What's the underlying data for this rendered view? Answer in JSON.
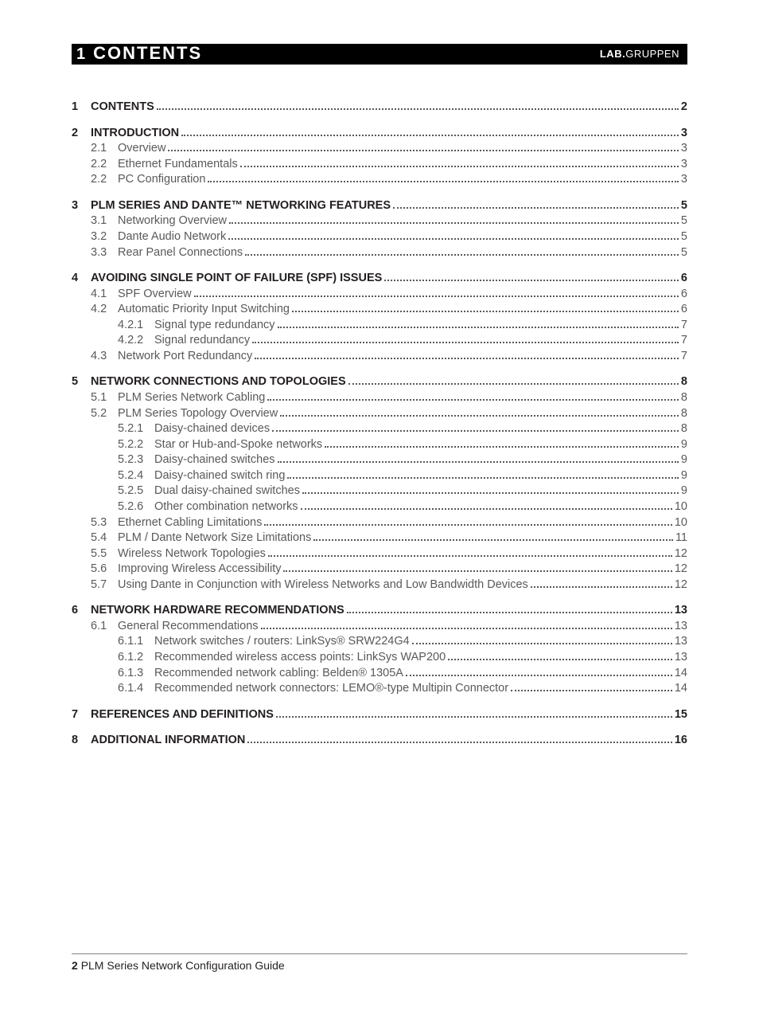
{
  "header": {
    "chapter_number": "1",
    "chapter_title": "CONTENTS",
    "brand_prefix": "LAB",
    "brand_dot": ".",
    "brand_suffix": "GRUPPEN"
  },
  "colors": {
    "header_bg": "#000000",
    "header_fg": "#ffffff",
    "text_main": "#231f20",
    "text_sub": "#58595b",
    "rule": "#808285",
    "page_bg": "#ffffff"
  },
  "typography": {
    "body_fontsize_pt": 11,
    "title_fontsize_pt": 17,
    "footer_fontsize_pt": 11
  },
  "toc": [
    {
      "num": "1",
      "title": "CONTENTS",
      "page": "2",
      "subs": []
    },
    {
      "num": "2",
      "title": "INTRODUCTION",
      "page": "3",
      "subs": [
        {
          "num": "2.1",
          "title": "Overview",
          "page": "3"
        },
        {
          "num": "2.2",
          "title": "Ethernet Fundamentals",
          "page": "3"
        },
        {
          "num": "2.2",
          "title": "PC Configuration",
          "page": "3"
        }
      ]
    },
    {
      "num": "3",
      "title": "PLM SERIES AND DANTE™ NETWORKING FEATURES",
      "page": "5",
      "subs": [
        {
          "num": "3.1",
          "title": "Networking Overview",
          "page": "5"
        },
        {
          "num": "3.2",
          "title": "Dante Audio Network",
          "page": "5"
        },
        {
          "num": "3.3",
          "title": "Rear Panel Connections",
          "page": "5"
        }
      ]
    },
    {
      "num": "4",
      "title": "AVOIDING SINGLE POINT OF FAILURE (SPF) ISSUES",
      "page": "6",
      "subs": [
        {
          "num": "4.1",
          "title": "SPF Overview",
          "page": "6"
        },
        {
          "num": "4.2",
          "title": "Automatic Priority Input Switching",
          "page": "6",
          "subs": [
            {
              "num": "4.2.1",
              "title": "Signal type redundancy",
              "page": "7"
            },
            {
              "num": "4.2.2",
              "title": "Signal redundancy",
              "page": "7"
            }
          ]
        },
        {
          "num": "4.3",
          "title": "Network Port Redundancy",
          "page": "7"
        }
      ]
    },
    {
      "num": "5",
      "title": "NETWORK CONNECTIONS AND TOPOLOGIES",
      "page": "8",
      "subs": [
        {
          "num": "5.1",
          "title": "PLM Series Network Cabling",
          "page": "8"
        },
        {
          "num": "5.2",
          "title": "PLM Series Topology Overview",
          "page": "8",
          "subs": [
            {
              "num": "5.2.1",
              "title": "Daisy-chained devices",
              "page": "8"
            },
            {
              "num": "5.2.2",
              "title": "Star or Hub-and-Spoke networks",
              "page": "9"
            },
            {
              "num": "5.2.3",
              "title": "Daisy-chained switches",
              "page": "9"
            },
            {
              "num": "5.2.4",
              "title": "Daisy-chained switch ring",
              "page": "9"
            },
            {
              "num": "5.2.5",
              "title": "Dual daisy-chained switches",
              "page": "9"
            },
            {
              "num": "5.2.6",
              "title": "Other combination networks",
              "page": "10"
            }
          ]
        },
        {
          "num": "5.3",
          "title": "Ethernet Cabling Limitations",
          "page": "10"
        },
        {
          "num": "5.4",
          "title": "PLM / Dante Network Size Limitations",
          "page": "11"
        },
        {
          "num": "5.5",
          "title": "Wireless Network Topologies",
          "page": "12"
        },
        {
          "num": "5.6",
          "title": "Improving Wireless Accessibility",
          "page": "12"
        },
        {
          "num": "5.7",
          "title": "Using Dante in Conjunction with Wireless Networks and Low Bandwidth Devices",
          "page": "12"
        }
      ]
    },
    {
      "num": "6",
      "title": "NETWORK HARDWARE RECOMMENDATIONS",
      "page": "13",
      "subs": [
        {
          "num": "6.1",
          "title": "General Recommendations",
          "page": "13",
          "subs": [
            {
              "num": "6.1.1",
              "title": "Network switches / routers: LinkSys® SRW224G4",
              "page": "13"
            },
            {
              "num": "6.1.2",
              "title": "Recommended wireless access points: LinkSys WAP200",
              "page": "13"
            },
            {
              "num": "6.1.3",
              "title": "Recommended network cabling: Belden® 1305A",
              "page": "14"
            },
            {
              "num": "6.1.4",
              "title": "Recommended network connectors: LEMO®-type Multipin Connector",
              "page": "14"
            }
          ]
        }
      ]
    },
    {
      "num": "7",
      "title": "REFERENCES AND DEFINITIONS",
      "page": "15",
      "subs": []
    },
    {
      "num": "8",
      "title": "ADDITIONAL INFORMATION",
      "page": "16",
      "subs": []
    }
  ],
  "footer": {
    "page_number": "2",
    "doc_title": "PLM Series Network Configuration Guide"
  }
}
